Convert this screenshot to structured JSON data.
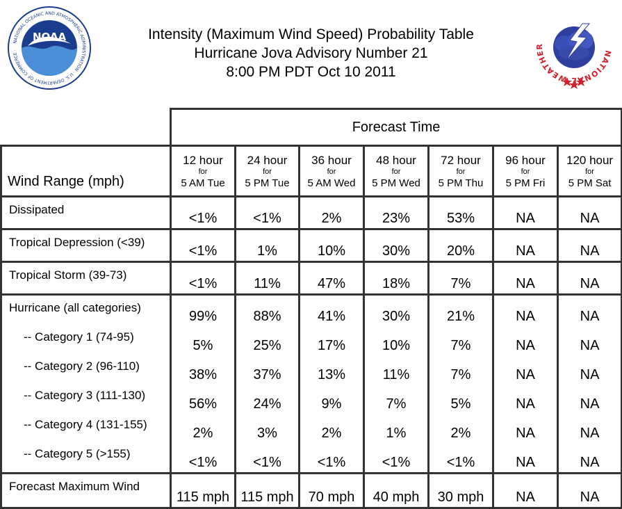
{
  "title": {
    "line1": "Intensity (Maximum Wind Speed) Probability Table",
    "line2": "Hurricane Jova Advisory Number 21",
    "line3": "8:00 PM PDT Oct 10 2011"
  },
  "logos": {
    "left": {
      "name": "NOAA",
      "ring_text": "NATIONAL OCEANIC AND ATMOSPHERIC ADMINISTRATION · U.S. DEPARTMENT OF COMMERCE",
      "icon": "noaa-logo"
    },
    "right": {
      "ring_text": "NATIONAL WEATHER SERVICE",
      "icon": "nws-logo"
    }
  },
  "table": {
    "forecast_time_label": "Forecast Time",
    "wind_range_label": "Wind Range (mph)",
    "columns": [
      {
        "hours": "12 hour",
        "for": "for",
        "when": "5 AM Tue"
      },
      {
        "hours": "24 hour",
        "for": "for",
        "when": "5 PM Tue"
      },
      {
        "hours": "36 hour",
        "for": "for",
        "when": "5 AM Wed"
      },
      {
        "hours": "48 hour",
        "for": "for",
        "when": "5 PM Wed"
      },
      {
        "hours": "72 hour",
        "for": "for",
        "when": "5 PM Thu"
      },
      {
        "hours": "96 hour",
        "for": "for",
        "when": "5 PM Fri"
      },
      {
        "hours": "120 hour",
        "for": "for",
        "when": "5 PM Sat"
      }
    ],
    "rows": [
      {
        "label": "Dissipated",
        "values": [
          "<1%",
          "<1%",
          "2%",
          "23%",
          "53%",
          "NA",
          "NA"
        ]
      },
      {
        "label": "Tropical Depression (<39)",
        "values": [
          "<1%",
          "1%",
          "10%",
          "30%",
          "20%",
          "NA",
          "NA"
        ]
      },
      {
        "label": "Tropical Storm (39-73)",
        "values": [
          "<1%",
          "11%",
          "47%",
          "18%",
          "7%",
          "NA",
          "NA"
        ]
      },
      {
        "label": "Hurricane (all categories)",
        "values": [
          "99%",
          "88%",
          "41%",
          "30%",
          "21%",
          "NA",
          "NA"
        ]
      },
      {
        "label": "-- Category 1 (74-95)",
        "values": [
          "5%",
          "25%",
          "17%",
          "10%",
          "7%",
          "NA",
          "NA"
        ]
      },
      {
        "label": "-- Category 2 (96-110)",
        "values": [
          "38%",
          "37%",
          "13%",
          "11%",
          "7%",
          "NA",
          "NA"
        ]
      },
      {
        "label": "-- Category 3 (111-130)",
        "values": [
          "56%",
          "24%",
          "9%",
          "7%",
          "5%",
          "NA",
          "NA"
        ]
      },
      {
        "label": "-- Category 4 (131-155)",
        "values": [
          "2%",
          "3%",
          "2%",
          "1%",
          "2%",
          "NA",
          "NA"
        ]
      },
      {
        "label": "-- Category 5 (>155)",
        "values": [
          "<1%",
          "<1%",
          "<1%",
          "<1%",
          "<1%",
          "NA",
          "NA"
        ]
      },
      {
        "label": "Forecast Maximum Wind",
        "values": [
          "115 mph",
          "115 mph",
          "70 mph",
          "40 mph",
          "30 mph",
          "NA",
          "NA"
        ]
      }
    ]
  },
  "colors": {
    "border": "#333333",
    "noaa_blue": "#1a3d8f",
    "nws_red": "#d0202a"
  }
}
